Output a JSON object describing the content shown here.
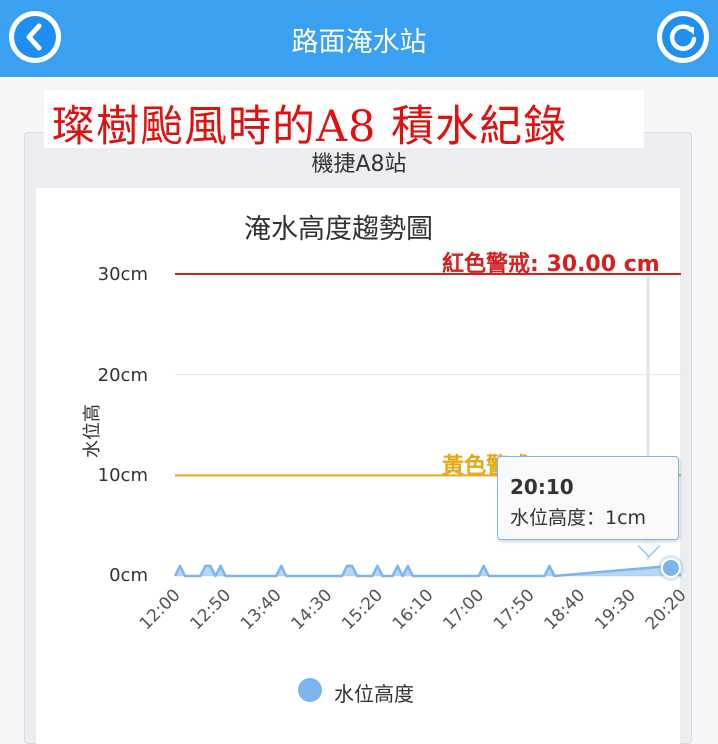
{
  "app": {
    "title": "路面淹水站",
    "back_icon": "chevron-left-icon",
    "refresh_icon": "refresh-icon"
  },
  "banner": {
    "text": "璨樹颱風時的A8 積水紀錄",
    "color": "#e11010"
  },
  "station": {
    "name": "機捷A8站"
  },
  "chart_data": {
    "type": "area",
    "title": "淹水高度趨勢圖",
    "ylabel": "水位高",
    "xlabel": "",
    "ylim": [
      0,
      30
    ],
    "y_ticks": [
      "0cm",
      "10cm",
      "20cm",
      "30cm"
    ],
    "x_tick_labels": [
      "12:00",
      "12:50",
      "13:40",
      "14:30",
      "15:20",
      "16:10",
      "17:00",
      "17:50",
      "18:40",
      "19:30",
      "20:20"
    ],
    "x_range_minutes": [
      720,
      1220
    ],
    "series": [
      {
        "name": "水位高度",
        "color": "#7cb5ec",
        "points": [
          {
            "x": "12:00",
            "y": 0
          },
          {
            "x": "12:05",
            "y": 1
          },
          {
            "x": "12:10",
            "y": 0
          },
          {
            "x": "12:25",
            "y": 0
          },
          {
            "x": "12:30",
            "y": 1
          },
          {
            "x": "12:35",
            "y": 1
          },
          {
            "x": "12:40",
            "y": 0
          },
          {
            "x": "12:45",
            "y": 1
          },
          {
            "x": "12:50",
            "y": 0
          },
          {
            "x": "13:40",
            "y": 0
          },
          {
            "x": "13:45",
            "y": 1
          },
          {
            "x": "13:50",
            "y": 0
          },
          {
            "x": "14:45",
            "y": 0
          },
          {
            "x": "14:50",
            "y": 1
          },
          {
            "x": "14:55",
            "y": 1
          },
          {
            "x": "15:00",
            "y": 0
          },
          {
            "x": "15:15",
            "y": 0
          },
          {
            "x": "15:20",
            "y": 1
          },
          {
            "x": "15:25",
            "y": 0
          },
          {
            "x": "15:35",
            "y": 0
          },
          {
            "x": "15:40",
            "y": 1
          },
          {
            "x": "15:45",
            "y": 0
          },
          {
            "x": "15:50",
            "y": 1
          },
          {
            "x": "15:55",
            "y": 0
          },
          {
            "x": "17:00",
            "y": 0
          },
          {
            "x": "17:05",
            "y": 1
          },
          {
            "x": "17:10",
            "y": 0
          },
          {
            "x": "18:05",
            "y": 0
          },
          {
            "x": "18:10",
            "y": 1
          },
          {
            "x": "18:15",
            "y": 0
          },
          {
            "x": "20:10",
            "y": 1
          },
          {
            "x": "20:20",
            "y": 0
          }
        ]
      }
    ],
    "plot_lines": [
      {
        "label": "紅色警戒: 30.00 cm",
        "value": 30,
        "color": "#d42020"
      },
      {
        "label": "黃色警戒: 10.00 cm",
        "value": 10,
        "color": "#e6a817"
      }
    ],
    "tooltip": {
      "time": "20:10",
      "text": "水位高度：1cm",
      "x": "20:10",
      "y": 1
    },
    "legend": {
      "entries": [
        "水位高度"
      ],
      "placement": "bottom-center"
    },
    "grid": true
  }
}
